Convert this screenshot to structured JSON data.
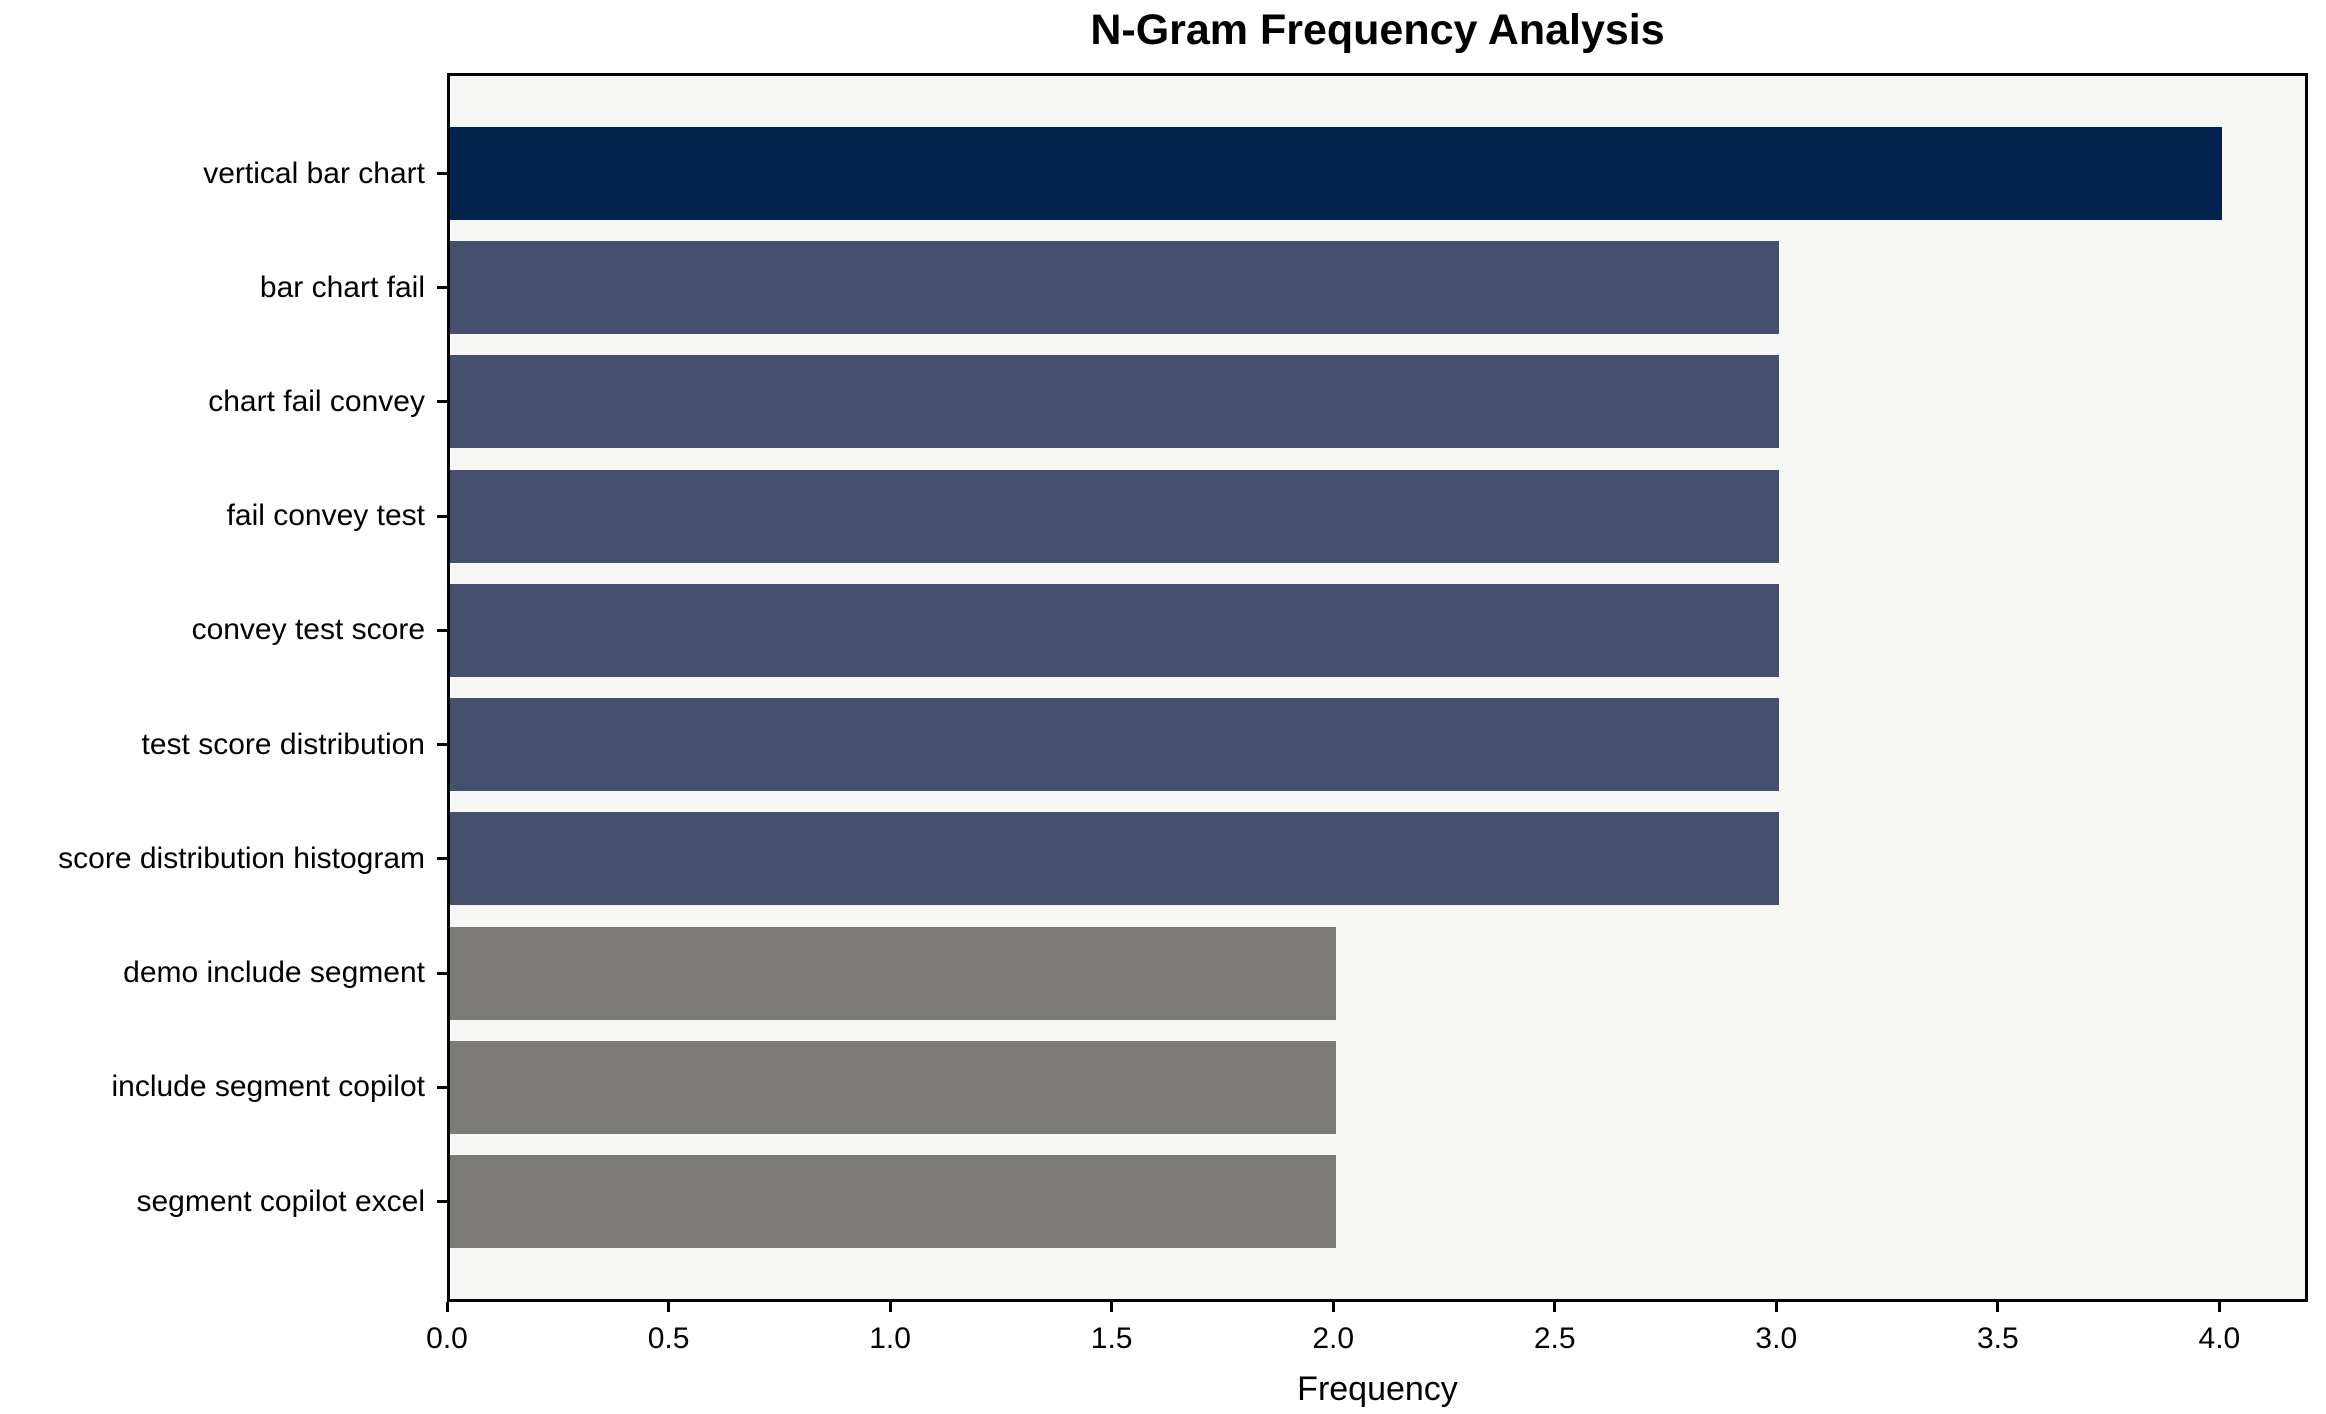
{
  "chart_data": {
    "type": "bar",
    "orientation": "horizontal",
    "title": "N-Gram Frequency Analysis",
    "xlabel": "Frequency",
    "ylabel": "",
    "categories": [
      "vertical bar chart",
      "bar chart fail",
      "chart fail convey",
      "fail convey test",
      "convey test score",
      "test score distribution",
      "score distribution histogram",
      "demo include segment",
      "include segment copilot",
      "segment copilot excel"
    ],
    "values": [
      4,
      3,
      3,
      3,
      3,
      3,
      3,
      2,
      2,
      2
    ],
    "bar_colors": [
      "#02234E",
      "#45506E",
      "#45506E",
      "#45506E",
      "#45506E",
      "#45506E",
      "#45506E",
      "#7B7A76",
      "#7B7A76",
      "#7B7A76"
    ],
    "xlim": [
      0,
      4.2
    ],
    "xticks": [
      0.0,
      0.5,
      1.0,
      1.5,
      2.0,
      2.5,
      3.0,
      3.5,
      4.0
    ],
    "xtick_labels": [
      "0.0",
      "0.5",
      "1.0",
      "1.5",
      "2.0",
      "2.5",
      "3.0",
      "3.5",
      "4.0"
    ],
    "grid": false,
    "legend": null,
    "plot_background": "#F7F7F6",
    "figure_background": "#FFFFFF",
    "spine_color": "#000000",
    "text_color": "#000000"
  }
}
